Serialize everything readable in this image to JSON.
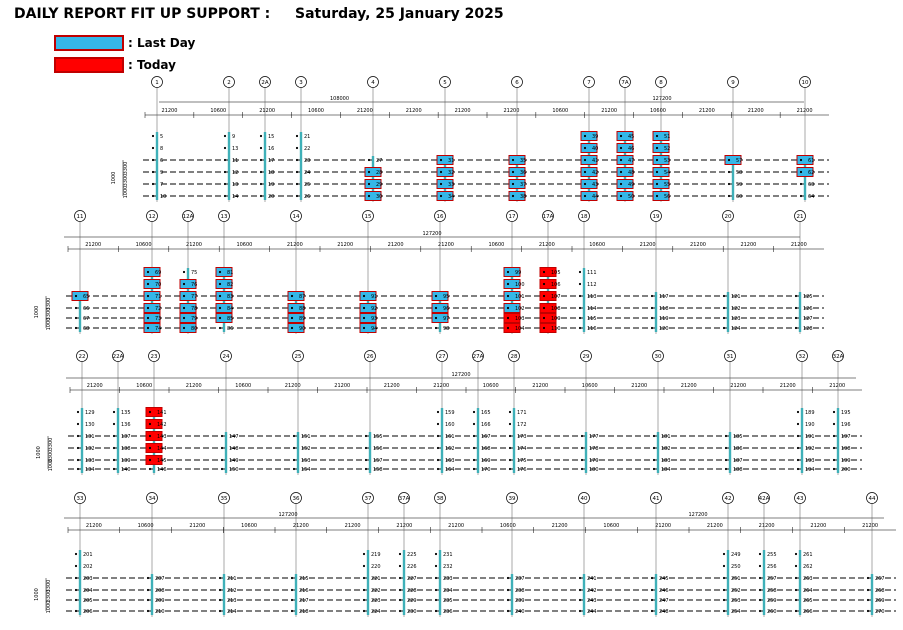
{
  "header": {
    "title": "DAILY REPORT FIT UP SUPPORT :",
    "date": "Saturday, 25 January 2025"
  },
  "legend": {
    "last_day": {
      "label": ": Last Day",
      "color": "#35b7e8"
    },
    "today": {
      "label": ": Today",
      "color": "#ff0000"
    }
  },
  "drawing": {
    "colors": {
      "support_box_border": "#c00000",
      "support_stem": "#3fb0b8"
    },
    "rows": [
      {
        "grids": [
          "1",
          "2",
          "2A",
          "3",
          "4",
          "5",
          "6",
          "7",
          "7A",
          "8",
          "9",
          "10"
        ],
        "total_dims": [
          {
            "label": "108000",
            "from": 0,
            "to": 5
          },
          {
            "label": "127200",
            "from": 5,
            "to": 11
          }
        ],
        "dims": [
          "21200",
          "10600",
          "21200",
          "10600",
          "21200",
          "21200",
          "21200",
          "21200",
          "10600",
          "21200",
          "10600",
          "21200",
          "21200",
          "21200"
        ],
        "side_dims": [
          "1000",
          "3300",
          "3300",
          "1000"
        ],
        "columns": [
          {
            "grid": "1",
            "labels": [
              "5",
              "8",
              "6",
              "9",
              "7",
              "10"
            ],
            "last_day": [],
            "today": []
          },
          {
            "grid": "2",
            "labels": [
              "9",
              "13",
              "11",
              "12",
              "13",
              "14"
            ],
            "last_day": [],
            "today": []
          },
          {
            "grid": "2A",
            "labels": [
              "15",
              "16",
              "17",
              "18",
              "19",
              "20"
            ],
            "last_day": [],
            "today": []
          },
          {
            "grid": "3",
            "labels": [
              "21",
              "22",
              "23",
              "24",
              "25",
              "26"
            ],
            "last_day": [],
            "today": []
          },
          {
            "grid": "4",
            "labels": [
              "27",
              "28",
              "29",
              "30"
            ],
            "last_day": [
              1,
              2,
              3
            ],
            "today": []
          },
          {
            "grid": "5",
            "labels": [
              "31",
              "32",
              "33",
              "34"
            ],
            "last_day": [
              0,
              1,
              2,
              3
            ],
            "today": []
          },
          {
            "grid": "6",
            "labels": [
              "35",
              "36",
              "37",
              "38"
            ],
            "last_day": [
              0,
              1,
              2,
              3
            ],
            "today": []
          },
          {
            "grid": "7",
            "labels": [
              "39",
              "40",
              "41",
              "42",
              "43",
              "44"
            ],
            "last_day": [
              0,
              1,
              2,
              3,
              4,
              5
            ],
            "today": []
          },
          {
            "grid": "7A",
            "labels": [
              "45",
              "46",
              "47",
              "48",
              "49",
              "50"
            ],
            "last_day": [
              0,
              1,
              2,
              3,
              4,
              5
            ],
            "today": []
          },
          {
            "grid": "8",
            "labels": [
              "51",
              "52",
              "53",
              "54",
              "55",
              "56"
            ],
            "last_day": [
              0,
              1,
              2,
              3,
              4,
              5
            ],
            "today": []
          },
          {
            "grid": "9",
            "labels": [
              "57",
              "58",
              "59",
              "60"
            ],
            "last_day": [
              0
            ],
            "today": []
          },
          {
            "grid": "10",
            "labels": [
              "61",
              "62",
              "63",
              "64"
            ],
            "last_day": [
              0,
              1
            ],
            "today": []
          }
        ]
      },
      {
        "grids": [
          "11",
          "12",
          "12A",
          "13",
          "14",
          "15",
          "16",
          "17",
          "17A",
          "18",
          "19",
          "20",
          "21"
        ],
        "total_dims": [
          {
            "label": "127200",
            "from": 0,
            "to": 12
          }
        ],
        "dims": [
          "21200",
          "10600",
          "21200",
          "10600",
          "21200",
          "21200",
          "21200",
          "21200",
          "10600",
          "21200",
          "10600",
          "21200",
          "21200",
          "21200",
          "21200"
        ],
        "side_dims": [
          "1000",
          "3300",
          "3300",
          "1000"
        ],
        "columns": [
          {
            "grid": "11",
            "labels": [
              "65",
              "66",
              "67",
              "68"
            ],
            "last_day": [
              0
            ],
            "today": []
          },
          {
            "grid": "12",
            "labels": [
              "69",
              "70",
              "71",
              "72",
              "73",
              "74"
            ],
            "last_day": [
              0,
              1,
              2,
              3,
              4,
              5
            ],
            "today": []
          },
          {
            "grid": "12A",
            "labels": [
              "75",
              "76",
              "77",
              "78",
              "79",
              "80"
            ],
            "last_day": [
              1,
              2,
              3,
              4,
              5
            ],
            "today": []
          },
          {
            "grid": "13",
            "labels": [
              "81",
              "82",
              "83",
              "84",
              "85",
              "86"
            ],
            "last_day": [
              0,
              1,
              2,
              3,
              4
            ],
            "today": []
          },
          {
            "grid": "14",
            "labels": [
              "87",
              "88",
              "89",
              "90"
            ],
            "last_day": [
              0,
              1,
              2,
              3
            ],
            "today": []
          },
          {
            "grid": "15",
            "labels": [
              "91",
              "92",
              "93",
              "94"
            ],
            "last_day": [
              0,
              1,
              2,
              3
            ],
            "today": []
          },
          {
            "grid": "16",
            "labels": [
              "95",
              "96",
              "97",
              "98"
            ],
            "last_day": [
              0,
              1,
              2
            ],
            "today": []
          },
          {
            "grid": "17",
            "labels": [
              "99",
              "100",
              "101",
              "102",
              "103",
              "104"
            ],
            "last_day": [
              0,
              1,
              2,
              3
            ],
            "today": [
              4,
              5
            ]
          },
          {
            "grid": "17A",
            "labels": [
              "105",
              "106",
              "107",
              "108",
              "109",
              "110"
            ],
            "last_day": [],
            "today": [
              0,
              1,
              2,
              3,
              4,
              5
            ]
          },
          {
            "grid": "18",
            "labels": [
              "111",
              "112",
              "113",
              "114",
              "115",
              "116"
            ],
            "last_day": [],
            "today": []
          },
          {
            "grid": "19",
            "labels": [
              "117",
              "118",
              "119",
              "120"
            ],
            "last_day": [],
            "today": []
          },
          {
            "grid": "20",
            "labels": [
              "121",
              "122",
              "123",
              "124"
            ],
            "last_day": [],
            "today": []
          },
          {
            "grid": "21",
            "labels": [
              "125",
              "126",
              "127",
              "128"
            ],
            "last_day": [],
            "today": []
          }
        ]
      },
      {
        "grids": [
          "22",
          "22A",
          "23",
          "24",
          "25",
          "26",
          "27",
          "27A",
          "28",
          "29",
          "30",
          "31",
          "32",
          "32A"
        ],
        "total_dims": [
          {
            "label": "127200",
            "from": 0,
            "to": 13
          }
        ],
        "dims": [
          "21200",
          "10600",
          "21200",
          "10600",
          "21200",
          "21200",
          "21200",
          "21200",
          "10600",
          "21200",
          "10600",
          "21200",
          "21200",
          "21200",
          "21200",
          "21200"
        ],
        "side_dims": [
          "1000",
          "3300",
          "3300",
          "1000"
        ],
        "columns": [
          {
            "grid": "22",
            "labels": [
              "129",
              "130",
              "131",
              "132",
              "133",
              "134"
            ],
            "last_day": [],
            "today": []
          },
          {
            "grid": "22A",
            "labels": [
              "135",
              "136",
              "137",
              "138",
              "139",
              "140"
            ],
            "last_day": [],
            "today": []
          },
          {
            "grid": "23",
            "labels": [
              "141",
              "142",
              "143",
              "144",
              "145",
              "146"
            ],
            "last_day": [],
            "today": [
              0,
              1,
              2,
              3,
              4
            ]
          },
          {
            "grid": "24",
            "labels": [
              "147",
              "148",
              "149",
              "150"
            ],
            "last_day": [],
            "today": []
          },
          {
            "grid": "25",
            "labels": [
              "151",
              "152",
              "153",
              "154"
            ],
            "last_day": [],
            "today": []
          },
          {
            "grid": "26",
            "labels": [
              "155",
              "156",
              "157",
              "158"
            ],
            "last_day": [],
            "today": []
          },
          {
            "grid": "27",
            "labels": [
              "159",
              "160",
              "161",
              "162",
              "163",
              "164"
            ],
            "last_day": [],
            "today": []
          },
          {
            "grid": "27A",
            "labels": [
              "165",
              "166",
              "167",
              "168",
              "169",
              "170"
            ],
            "last_day": [],
            "today": []
          },
          {
            "grid": "28",
            "labels": [
              "171",
              "172",
              "173",
              "174",
              "175",
              "176"
            ],
            "last_day": [],
            "today": []
          },
          {
            "grid": "29",
            "labels": [
              "177",
              "178",
              "179",
              "180"
            ],
            "last_day": [],
            "today": []
          },
          {
            "grid": "30",
            "labels": [
              "181",
              "182",
              "183",
              "184"
            ],
            "last_day": [],
            "today": []
          },
          {
            "grid": "31",
            "labels": [
              "185",
              "186",
              "187",
              "188"
            ],
            "last_day": [],
            "today": []
          },
          {
            "grid": "32",
            "labels": [
              "189",
              "190",
              "191",
              "192",
              "193",
              "194"
            ],
            "last_day": [],
            "today": []
          },
          {
            "grid": "32A",
            "labels": [
              "195",
              "196",
              "197",
              "198",
              "199",
              "200"
            ],
            "last_day": [],
            "today": []
          }
        ]
      },
      {
        "grids": [
          "33",
          "34",
          "35",
          "36",
          "37",
          "37A",
          "38",
          "39",
          "40",
          "41",
          "42",
          "42A",
          "43",
          "44"
        ],
        "total_dims": [
          {
            "label": "127200",
            "from": 0,
            "to": 6
          },
          {
            "label": "127200",
            "from": 6,
            "to": 13
          }
        ],
        "dims": [
          "21200",
          "10600",
          "21200",
          "10600",
          "21200",
          "21200",
          "21200",
          "21200",
          "10600",
          "21200",
          "10600",
          "21200",
          "21200",
          "21200",
          "21200",
          "21200"
        ],
        "side_dims": [
          "1000",
          "3300",
          "3300",
          "1000"
        ],
        "columns": [
          {
            "grid": "33",
            "labels": [
              "201",
              "202",
              "203",
              "204",
              "205",
              "206"
            ],
            "last_day": [],
            "today": []
          },
          {
            "grid": "34",
            "labels": [
              "207",
              "208",
              "209",
              "210"
            ],
            "last_day": [],
            "today": []
          },
          {
            "grid": "35",
            "labels": [
              "211",
              "212",
              "213",
              "214"
            ],
            "last_day": [],
            "today": []
          },
          {
            "grid": "36",
            "labels": [
              "215",
              "216",
              "217",
              "218"
            ],
            "last_day": [],
            "today": []
          },
          {
            "grid": "37",
            "labels": [
              "219",
              "220",
              "221",
              "222",
              "223",
              "224"
            ],
            "last_day": [],
            "today": []
          },
          {
            "grid": "37A",
            "labels": [
              "225",
              "226",
              "227",
              "228",
              "229",
              "230"
            ],
            "last_day": [],
            "today": []
          },
          {
            "grid": "38",
            "labels": [
              "231",
              "232",
              "233",
              "234",
              "235",
              "236"
            ],
            "last_day": [],
            "today": []
          },
          {
            "grid": "39",
            "labels": [
              "237",
              "238",
              "239",
              "240"
            ],
            "last_day": [],
            "today": []
          },
          {
            "grid": "40",
            "labels": [
              "241",
              "242",
              "243",
              "244"
            ],
            "last_day": [],
            "today": []
          },
          {
            "grid": "41",
            "labels": [
              "245",
              "246",
              "247",
              "248"
            ],
            "last_day": [],
            "today": []
          },
          {
            "grid": "42",
            "labels": [
              "249",
              "250",
              "251",
              "252",
              "253",
              "254"
            ],
            "last_day": [],
            "today": []
          },
          {
            "grid": "42A",
            "labels": [
              "255",
              "256",
              "257",
              "258",
              "259",
              "260"
            ],
            "last_day": [],
            "today": []
          },
          {
            "grid": "43",
            "labels": [
              "261",
              "262",
              "263",
              "264",
              "265",
              "266"
            ],
            "last_day": [],
            "today": []
          },
          {
            "grid": "44",
            "labels": [
              "267",
              "268",
              "269",
              "270"
            ],
            "last_day": [],
            "today": []
          }
        ]
      }
    ]
  }
}
